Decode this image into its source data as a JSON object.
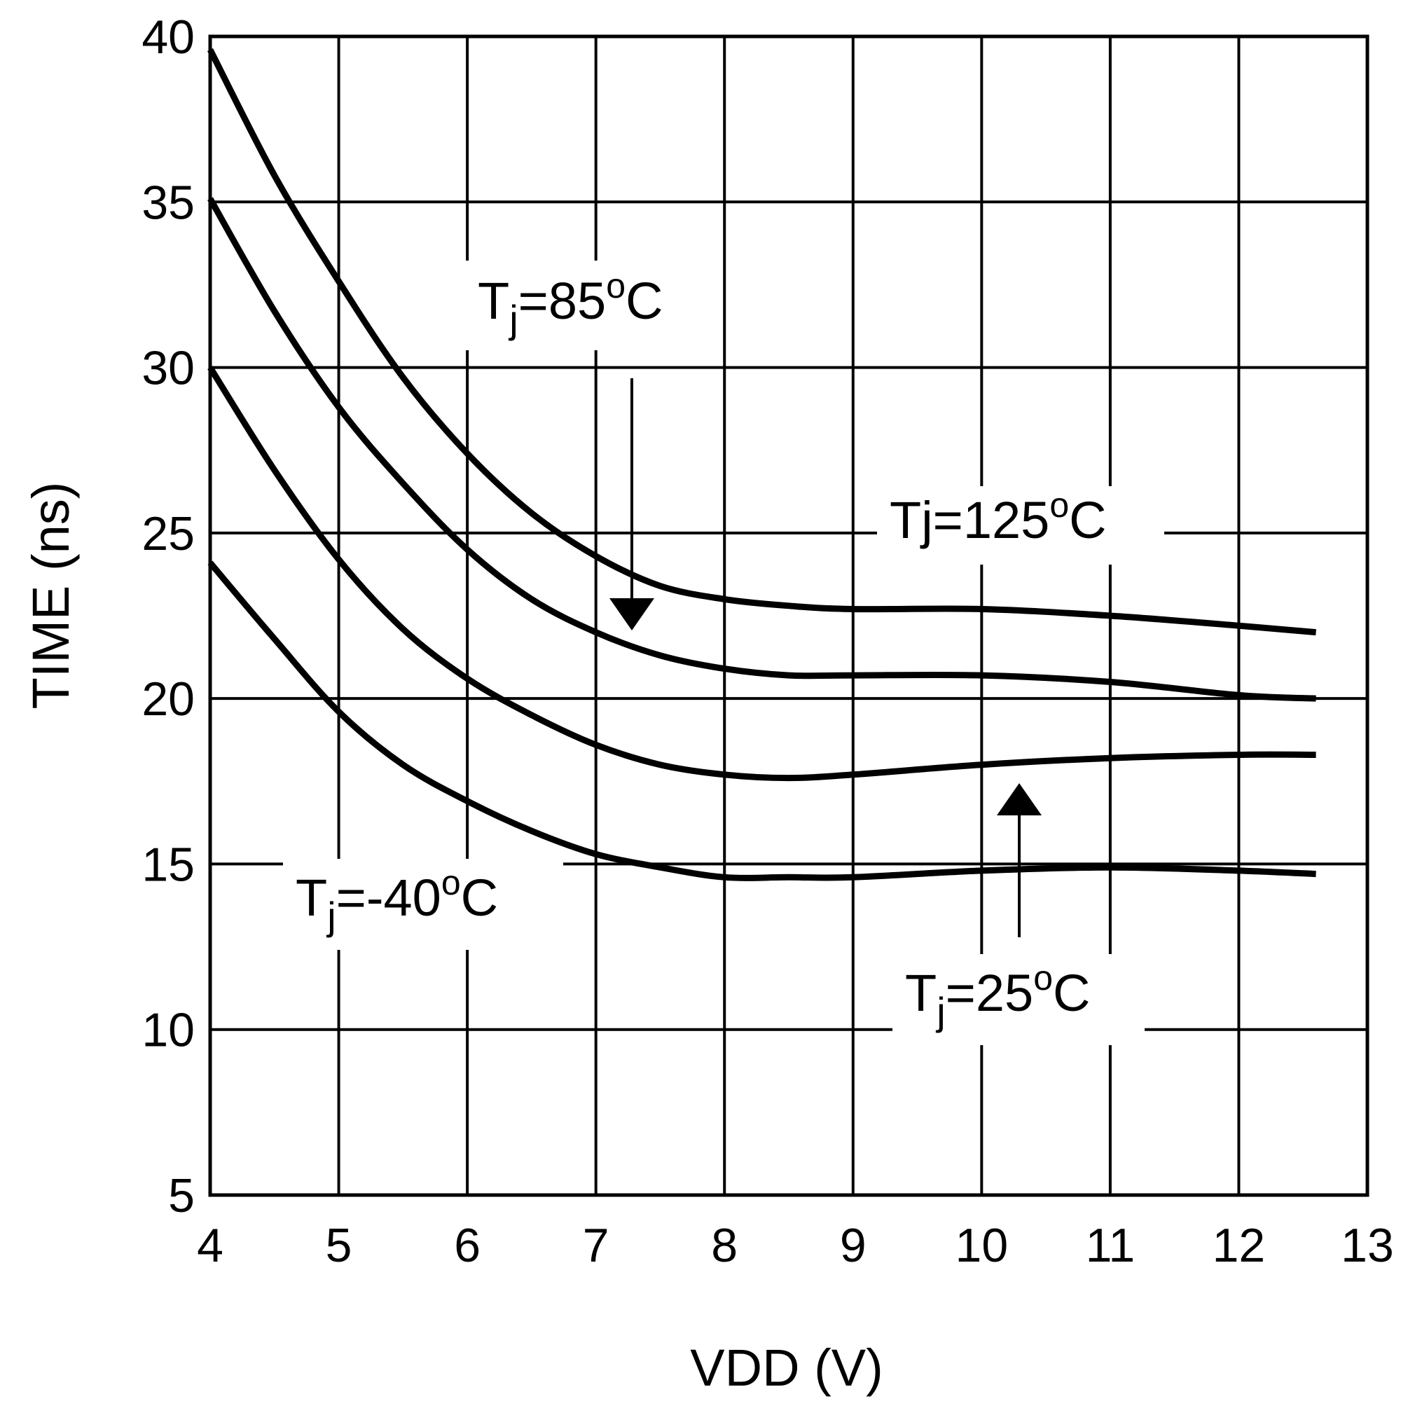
{
  "chart_data": {
    "type": "line",
    "title": "",
    "xlabel": "VDD (V)",
    "ylabel": "TIME (ns)",
    "xlim": [
      4,
      13
    ],
    "ylim": [
      5,
      40
    ],
    "xticks": [
      4,
      5,
      6,
      7,
      8,
      9,
      10,
      11,
      12,
      13
    ],
    "yticks": [
      5,
      10,
      15,
      20,
      25,
      30,
      35,
      40
    ],
    "xtick_labels": [
      "4",
      "5",
      "6",
      "7",
      "8",
      "9",
      "10",
      "11",
      "12",
      "13"
    ],
    "ytick_labels": [
      "5",
      "10",
      "15",
      "20",
      "25",
      "30",
      "35",
      "40"
    ],
    "grid": true,
    "series": [
      {
        "name": "Tj=125°C",
        "x": [
          4.0,
          4.5,
          5.0,
          5.5,
          6.0,
          6.5,
          7.0,
          7.5,
          8.0,
          8.5,
          9.0,
          10.0,
          11.0,
          12.0,
          12.6
        ],
        "y": [
          39.6,
          35.8,
          32.6,
          29.7,
          27.4,
          25.6,
          24.3,
          23.4,
          23.0,
          22.8,
          22.7,
          22.7,
          22.5,
          22.2,
          22.0
        ]
      },
      {
        "name": "Tj=85°C",
        "x": [
          4.0,
          4.5,
          5.0,
          5.5,
          6.0,
          6.5,
          7.0,
          7.5,
          8.0,
          8.5,
          9.0,
          10.0,
          11.0,
          12.0,
          12.6
        ],
        "y": [
          35.1,
          31.7,
          28.8,
          26.5,
          24.5,
          23.0,
          22.0,
          21.3,
          20.9,
          20.7,
          20.7,
          20.7,
          20.5,
          20.1,
          20.0
        ]
      },
      {
        "name": "Tj=25°C",
        "x": [
          4.0,
          4.5,
          5.0,
          5.5,
          6.0,
          6.5,
          7.0,
          7.5,
          8.0,
          8.5,
          9.0,
          10.0,
          11.0,
          12.0,
          12.6
        ],
        "y": [
          30.0,
          26.9,
          24.2,
          22.1,
          20.6,
          19.5,
          18.6,
          18.0,
          17.7,
          17.6,
          17.7,
          18.0,
          18.2,
          18.3,
          18.3
        ]
      },
      {
        "name": "Tj=-40°C",
        "x": [
          4.0,
          4.5,
          5.0,
          5.5,
          6.0,
          6.5,
          7.0,
          7.5,
          8.0,
          8.5,
          9.0,
          10.0,
          11.0,
          12.0,
          12.6
        ],
        "y": [
          24.1,
          21.8,
          19.6,
          18.0,
          16.9,
          16.0,
          15.3,
          14.9,
          14.6,
          14.6,
          14.6,
          14.8,
          14.9,
          14.8,
          14.7
        ]
      }
    ],
    "annotations": [
      {
        "id": "tj85",
        "prefix": "T",
        "sub": "j",
        "mid": "=85",
        "sup": "o",
        "suffix": "C",
        "points_to": "Tj=85°C",
        "arrow": "down"
      },
      {
        "id": "tj125",
        "prefix": "Tj=125",
        "sub": "",
        "mid": "",
        "sup": "o",
        "suffix": "C",
        "points_to": "Tj=125°C",
        "arrow": "none"
      },
      {
        "id": "tj25",
        "prefix": "T",
        "sub": "j",
        "mid": "=25",
        "sup": "o",
        "suffix": "C",
        "points_to": "Tj=25°C",
        "arrow": "up"
      },
      {
        "id": "tjm40",
        "prefix": "T",
        "sub": "j",
        "mid": "=-40",
        "sup": "o",
        "suffix": "C",
        "points_to": "Tj=-40°C",
        "arrow": "none"
      }
    ]
  }
}
